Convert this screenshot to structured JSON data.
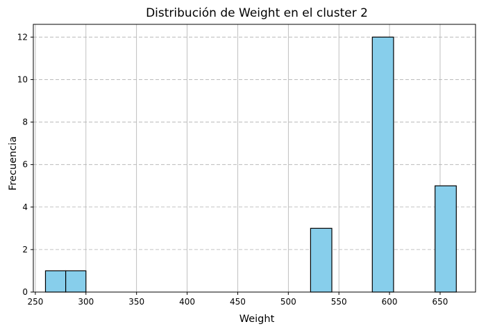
{
  "chart_data": {
    "type": "bar",
    "title": "Distribución de Weight en el cluster 2",
    "xlabel": "Weight",
    "ylabel": "Frecuencia",
    "xlim": [
      248,
      685
    ],
    "ylim": [
      0,
      12.6
    ],
    "x_ticks": [
      250,
      300,
      350,
      400,
      450,
      500,
      550,
      600,
      650
    ],
    "y_ticks": [
      0,
      2,
      4,
      6,
      8,
      10,
      12
    ],
    "bins": [
      {
        "start": 260,
        "end": 280,
        "count": 1
      },
      {
        "start": 280,
        "end": 300,
        "count": 1
      },
      {
        "start": 522,
        "end": 543,
        "count": 3
      },
      {
        "start": 583,
        "end": 604,
        "count": 12
      },
      {
        "start": 645,
        "end": 666,
        "count": 5
      }
    ],
    "bar_color": "#87ceeb",
    "edge_color": "#000000",
    "grid": true,
    "grid_color": "#b0b0b0"
  }
}
